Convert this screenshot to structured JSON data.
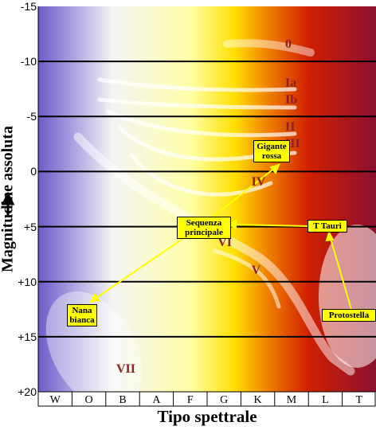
{
  "chart_data": {
    "type": "scatter",
    "title": "",
    "xlabel": "Tipo spettrale",
    "ylabel": "Magnitudine assoluta",
    "x_categories": [
      "W",
      "O",
      "B",
      "A",
      "F",
      "G",
      "K",
      "M",
      "L",
      "T"
    ],
    "y_ticks": [
      "-15",
      "-10",
      "-5",
      "0",
      "+5",
      "+10",
      "+15",
      "+20"
    ],
    "ylim": [
      -15,
      20
    ],
    "y_inverted": true,
    "grid": true,
    "luminosity_classes": [
      {
        "label": "0",
        "x": "M",
        "y": -11.5
      },
      {
        "label": "Ia",
        "x": "M",
        "y": -8
      },
      {
        "label": "Ib",
        "x": "M",
        "y": -6.5
      },
      {
        "label": "II",
        "x": "M",
        "y": -4
      },
      {
        "label": "III",
        "x": "M",
        "y": -2.5
      },
      {
        "label": "IV",
        "x": "K",
        "y": 1
      },
      {
        "label": "V",
        "x": "K",
        "y": 9
      },
      {
        "label": "VI",
        "x": "G",
        "y": 6.5
      },
      {
        "label": "VII",
        "x": "B",
        "y": 18
      }
    ],
    "annotations": [
      {
        "text": "Gigante rossa",
        "target": "K III"
      },
      {
        "text": "Sequenza principale",
        "target": "V, G"
      },
      {
        "text": "T Tauri",
        "target": "K IV"
      },
      {
        "text": "Nana bianca",
        "target": "VII"
      },
      {
        "text": "Protostella",
        "target": "T Tauri"
      }
    ]
  },
  "colors": {
    "background_left": "#6e5ac8",
    "background_mid": "#ffff99",
    "background_right": "#a01428",
    "annotation_fill": "#ffff00",
    "class_label": "#8a2020",
    "arrow": "#ffff00"
  }
}
